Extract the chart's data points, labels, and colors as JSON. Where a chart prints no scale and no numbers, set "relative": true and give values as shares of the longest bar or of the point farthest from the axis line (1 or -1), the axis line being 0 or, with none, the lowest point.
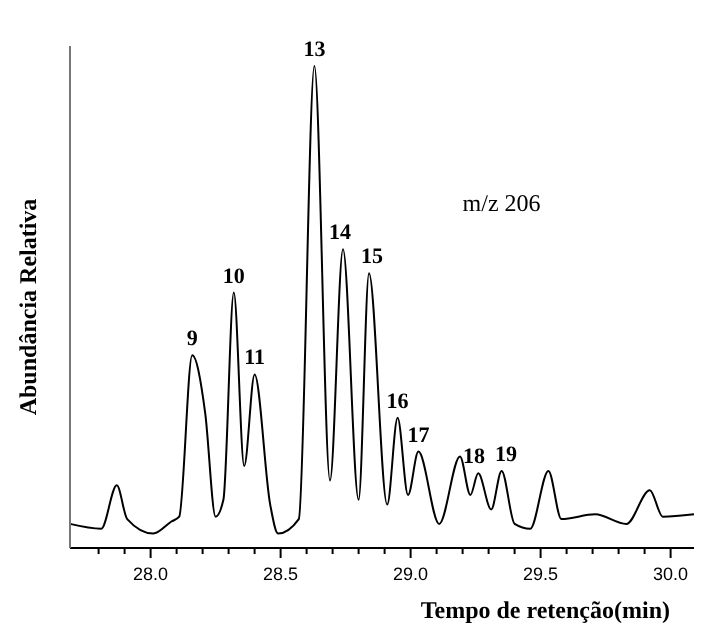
{
  "chart_data": {
    "type": "line",
    "relative": true,
    "xlabel": "Tempo de retenção(min)",
    "ylabel": "Abundância Relativa",
    "xlim": [
      27.69,
      30.09
    ],
    "xticks": [
      {
        "value": 27.8,
        "label": null
      },
      {
        "value": 27.9,
        "label": null
      },
      {
        "value": 28.0,
        "label": "28.0"
      },
      {
        "value": 28.1,
        "label": null
      },
      {
        "value": 28.2,
        "label": null
      },
      {
        "value": 28.3,
        "label": null
      },
      {
        "value": 28.4,
        "label": null
      },
      {
        "value": 28.5,
        "label": "28.5"
      },
      {
        "value": 28.6,
        "label": null
      },
      {
        "value": 28.7,
        "label": null
      },
      {
        "value": 28.8,
        "label": null
      },
      {
        "value": 28.9,
        "label": null
      },
      {
        "value": 29.0,
        "label": "29.0"
      },
      {
        "value": 29.1,
        "label": null
      },
      {
        "value": 29.2,
        "label": null
      },
      {
        "value": 29.3,
        "label": null
      },
      {
        "value": 29.4,
        "label": null
      },
      {
        "value": 29.5,
        "label": "29.5"
      },
      {
        "value": 29.6,
        "label": null
      },
      {
        "value": 29.7,
        "label": null
      },
      {
        "value": 29.8,
        "label": null
      },
      {
        "value": 29.9,
        "label": null
      },
      {
        "value": 30.0,
        "label": "30.0"
      }
    ],
    "series": [
      {
        "color": "#000000",
        "x": [
          27.69,
          27.81,
          27.87,
          27.91,
          28.01,
          28.08,
          28.11,
          28.16,
          28.21,
          28.25,
          28.28,
          28.32,
          28.36,
          28.4,
          28.46,
          28.49,
          28.57,
          28.63,
          28.69,
          28.74,
          28.8,
          28.84,
          28.91,
          28.95,
          28.99,
          29.03,
          29.11,
          29.19,
          29.23,
          29.26,
          29.31,
          29.35,
          29.4,
          29.46,
          29.53,
          29.58,
          29.71,
          29.83,
          29.92,
          29.97,
          30.09
        ],
        "values": [
          0.05,
          0.04,
          0.13,
          0.06,
          0.03,
          0.055,
          0.065,
          0.4,
          0.28,
          0.065,
          0.1,
          0.53,
          0.17,
          0.36,
          0.09,
          0.03,
          0.06,
          1.0,
          0.14,
          0.62,
          0.1,
          0.57,
          0.09,
          0.27,
          0.11,
          0.2,
          0.05,
          0.19,
          0.11,
          0.155,
          0.08,
          0.16,
          0.05,
          0.04,
          0.16,
          0.06,
          0.07,
          0.05,
          0.12,
          0.065,
          0.07
        ]
      }
    ],
    "annotations": [
      {
        "text": "9",
        "x": 28.16,
        "y": 0.4
      },
      {
        "text": "10",
        "x": 28.32,
        "y": 0.53
      },
      {
        "text": "11",
        "x": 28.4,
        "y": 0.36
      },
      {
        "text": "13",
        "x": 28.63,
        "y": 1.0
      },
      {
        "text": "14",
        "x": 28.74,
        "y": 0.62
      },
      {
        "text": "15",
        "x": 28.84,
        "y": 0.57
      },
      {
        "text": "16",
        "x": 28.95,
        "y": 0.27
      },
      {
        "text": "17",
        "x": 29.03,
        "y": 0.2
      },
      {
        "text": "18",
        "x": 29.26,
        "y": 0.155
      },
      {
        "text": "19",
        "x": 29.35,
        "y": 0.16
      },
      "m/z 206"
    ],
    "line_style": "solid",
    "marker": "none"
  }
}
